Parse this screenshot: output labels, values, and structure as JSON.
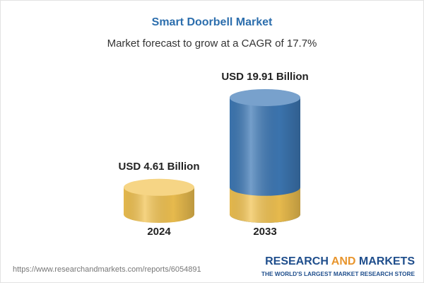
{
  "chart_data": {
    "type": "bar",
    "title": "Smart Doorbell Market",
    "subtitle": "Market forecast to grow at a CAGR of 17.7%",
    "categories": [
      "2024",
      "2033"
    ],
    "values": [
      4.61,
      19.91
    ],
    "value_labels": [
      "USD 4.61 Billion",
      "USD 19.91 Billion"
    ],
    "colors": [
      "#f2c351",
      "#3e79b6"
    ]
  },
  "footer": {
    "url": "https://www.researchandmarkets.com/reports/6054891",
    "brand": [
      "RESEARCH",
      "AND",
      "MARKETS"
    ],
    "tagline": "THE WORLD'S LARGEST MARKET RESEARCH STORE"
  }
}
